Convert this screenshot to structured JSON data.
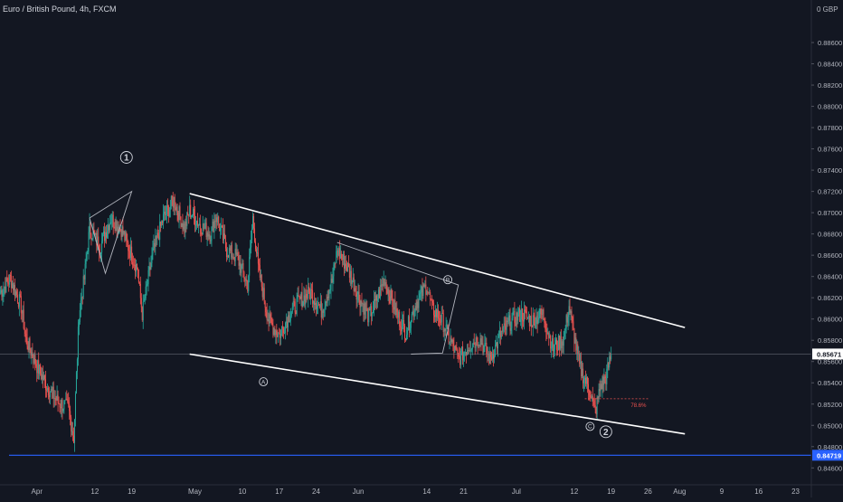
{
  "header": {
    "symbol_title": "Euro / British Pound, 4h, FXCM"
  },
  "colors": {
    "background": "#131722",
    "up_candle": "#26a69a",
    "down_candle": "#ef5350",
    "trendline": "#ffffff",
    "support_line": "#2962ff",
    "annotation": "#d1d4dc",
    "fib_dashed": "#ef5350"
  },
  "chart_data": {
    "type": "candlestick",
    "series_name": "EUR/GBP",
    "price_axis": {
      "currency_label": "0 GBP",
      "ylim": [
        0.8456,
        0.89
      ],
      "ticks": [
        0.886,
        0.884,
        0.882,
        0.88,
        0.878,
        0.876,
        0.874,
        0.872,
        0.87,
        0.868,
        0.866,
        0.864,
        0.862,
        0.86,
        0.858,
        0.856,
        0.854,
        0.852,
        0.85,
        0.848,
        0.846
      ],
      "tick_labels": [
        "0.88600",
        "0.88400",
        "0.88200",
        "0.88000",
        "0.87800",
        "0.87600",
        "0.87400",
        "0.87200",
        "0.87000",
        "0.86800",
        "0.86600",
        "0.86400",
        "0.86200",
        "0.86000",
        "0.85800",
        "0.85600",
        "0.85400",
        "0.85200",
        "0.85000",
        "0.84800",
        "0.84600"
      ],
      "current_price": 0.85671,
      "current_price_label": "0.85671",
      "support_price": 0.84719,
      "support_price_label": "0.84719"
    },
    "time_axis": {
      "xlim": [
        "2021-03-25",
        "2021-08-26"
      ],
      "labels": [
        {
          "date": "2021-04-01",
          "text": "Apr"
        },
        {
          "date": "2021-04-12",
          "text": "12"
        },
        {
          "date": "2021-04-19",
          "text": "19"
        },
        {
          "date": "2021-05-01",
          "text": "May"
        },
        {
          "date": "2021-05-10",
          "text": "10"
        },
        {
          "date": "2021-05-17",
          "text": "17"
        },
        {
          "date": "2021-05-24",
          "text": "24"
        },
        {
          "date": "2021-06-01",
          "text": "Jun"
        },
        {
          "date": "2021-06-14",
          "text": "14"
        },
        {
          "date": "2021-06-21",
          "text": "21"
        },
        {
          "date": "2021-07-01",
          "text": "Jul"
        },
        {
          "date": "2021-07-12",
          "text": "12"
        },
        {
          "date": "2021-07-19",
          "text": "19"
        },
        {
          "date": "2021-07-26",
          "text": "26"
        },
        {
          "date": "2021-08-01",
          "text": "Aug"
        },
        {
          "date": "2021-08-09",
          "text": "9"
        },
        {
          "date": "2021-08-16",
          "text": "16"
        },
        {
          "date": "2021-08-23",
          "text": "23"
        }
      ]
    },
    "price_path": [
      [
        "2021-03-25",
        0.8625
      ],
      [
        "2021-03-27",
        0.8638
      ],
      [
        "2021-03-29",
        0.8612
      ],
      [
        "2021-03-30",
        0.858
      ],
      [
        "2021-04-01",
        0.8556
      ],
      [
        "2021-04-03",
        0.8536
      ],
      [
        "2021-04-05",
        0.8522
      ],
      [
        "2021-04-07",
        0.8516
      ],
      [
        "2021-04-08",
        0.8488
      ],
      [
        "2021-04-09",
        0.8605
      ],
      [
        "2021-04-10",
        0.8638
      ],
      [
        "2021-04-11",
        0.8685
      ],
      [
        "2021-04-13",
        0.8668
      ],
      [
        "2021-04-15",
        0.8695
      ],
      [
        "2021-04-17",
        0.8685
      ],
      [
        "2021-04-18",
        0.8672
      ],
      [
        "2021-04-20",
        0.8648
      ],
      [
        "2021-04-21",
        0.8605
      ],
      [
        "2021-04-23",
        0.8662
      ],
      [
        "2021-04-25",
        0.8695
      ],
      [
        "2021-04-27",
        0.8712
      ],
      [
        "2021-04-29",
        0.8685
      ],
      [
        "2021-04-30",
        0.8702
      ],
      [
        "2021-05-02",
        0.8688
      ],
      [
        "2021-05-04",
        0.868
      ],
      [
        "2021-05-05",
        0.8698
      ],
      [
        "2021-05-07",
        0.8665
      ],
      [
        "2021-05-09",
        0.8658
      ],
      [
        "2021-05-11",
        0.8632
      ],
      [
        "2021-05-12",
        0.8695
      ],
      [
        "2021-05-13",
        0.8648
      ],
      [
        "2021-05-15",
        0.8598
      ],
      [
        "2021-05-17",
        0.8585
      ],
      [
        "2021-05-19",
        0.8605
      ],
      [
        "2021-05-21",
        0.8618
      ],
      [
        "2021-05-23",
        0.8625
      ],
      [
        "2021-05-25",
        0.8608
      ],
      [
        "2021-05-27",
        0.8635
      ],
      [
        "2021-05-28",
        0.8665
      ],
      [
        "2021-05-30",
        0.8648
      ],
      [
        "2021-06-01",
        0.8622
      ],
      [
        "2021-06-03",
        0.8602
      ],
      [
        "2021-06-04",
        0.8612
      ],
      [
        "2021-06-06",
        0.8638
      ],
      [
        "2021-06-08",
        0.8608
      ],
      [
        "2021-06-10",
        0.8588
      ],
      [
        "2021-06-12",
        0.8615
      ],
      [
        "2021-06-14",
        0.8632
      ],
      [
        "2021-06-15",
        0.861
      ],
      [
        "2021-06-17",
        0.8598
      ],
      [
        "2021-06-18",
        0.8585
      ],
      [
        "2021-06-20",
        0.8562
      ],
      [
        "2021-06-22",
        0.8575
      ],
      [
        "2021-06-24",
        0.8582
      ],
      [
        "2021-06-26",
        0.8562
      ],
      [
        "2021-06-28",
        0.8585
      ],
      [
        "2021-06-30",
        0.8598
      ],
      [
        "2021-07-02",
        0.8605
      ],
      [
        "2021-07-04",
        0.8598
      ],
      [
        "2021-07-06",
        0.8605
      ],
      [
        "2021-07-08",
        0.8572
      ],
      [
        "2021-07-10",
        0.8582
      ],
      [
        "2021-07-11",
        0.8612
      ],
      [
        "2021-07-13",
        0.8555
      ],
      [
        "2021-07-15",
        0.8532
      ],
      [
        "2021-07-16",
        0.8512
      ],
      [
        "2021-07-17",
        0.8538
      ],
      [
        "2021-07-18",
        0.8545
      ],
      [
        "2021-07-19",
        0.8567
      ]
    ],
    "trend_channel": {
      "upper": [
        [
          "2021-04-30",
          0.8718
        ],
        [
          "2021-08-02",
          0.8592
        ]
      ],
      "lower": [
        [
          "2021-04-30",
          0.8567
        ],
        [
          "2021-08-02",
          0.8492
        ]
      ]
    },
    "drawn_shapes": [
      {
        "name": "early-triangle",
        "points": [
          [
            "2021-04-11",
            0.8695
          ],
          [
            "2021-04-19",
            0.872
          ],
          [
            "2021-04-14",
            0.8643
          ],
          [
            "2021-04-11",
            0.8695
          ]
        ]
      },
      {
        "name": "mid-triangle",
        "points": [
          [
            "2021-05-28",
            0.8672
          ],
          [
            "2021-06-20",
            0.8632
          ],
          [
            "2021-06-17",
            0.8568
          ],
          [
            "2021-06-11",
            0.8567
          ]
        ]
      }
    ],
    "wave_labels": [
      {
        "text": "1",
        "date": "2021-04-18",
        "price": 0.8752,
        "size": "large"
      },
      {
        "text": "A",
        "date": "2021-05-14",
        "price": 0.8541,
        "size": "small"
      },
      {
        "text": "B",
        "date": "2021-06-18",
        "price": 0.8637,
        "size": "small"
      },
      {
        "text": "C",
        "date": "2021-07-15",
        "price": 0.8499,
        "size": "small"
      },
      {
        "text": "2",
        "date": "2021-07-18",
        "price": 0.8494,
        "size": "large"
      }
    ],
    "fib_level": {
      "label": "78.6%",
      "price": 0.8525,
      "from": "2021-07-14",
      "to": "2021-07-26"
    }
  }
}
